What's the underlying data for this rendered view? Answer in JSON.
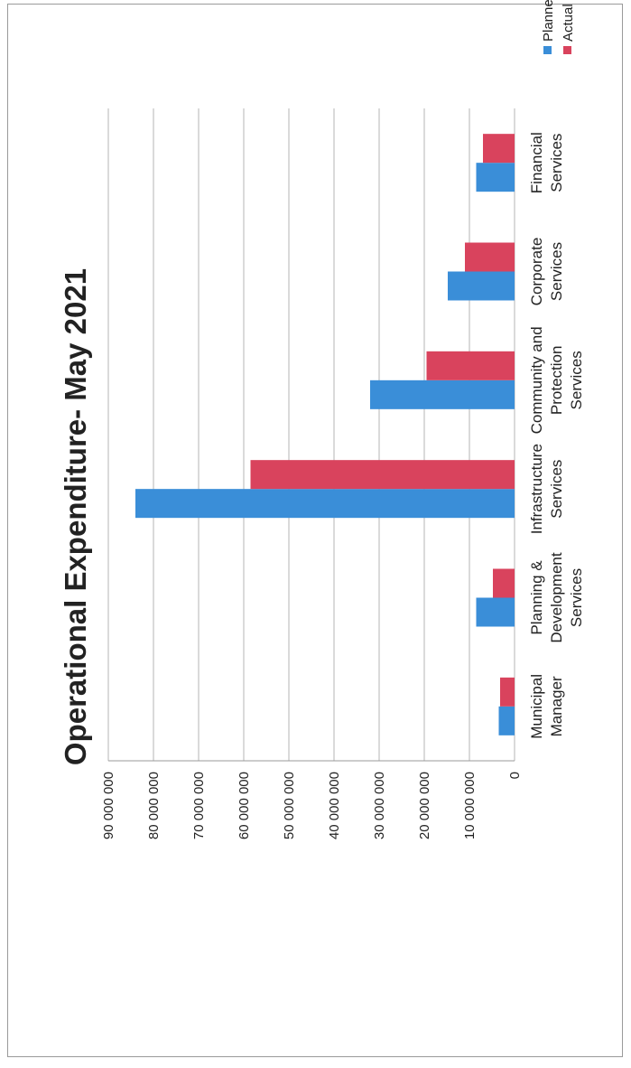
{
  "chart_data": {
    "type": "bar",
    "title": "Operational Expenditure-  May 2021",
    "categories": [
      "Municipal Manager",
      "Planning & Development Services",
      "Infrastructure Services",
      "Community and Protection Services",
      "Corporate Services",
      "Financial Services"
    ],
    "category_lines": [
      [
        "Municipal",
        "Manager"
      ],
      [
        "Planning &",
        "Development",
        "Services"
      ],
      [
        "Infrastructure",
        "Services"
      ],
      [
        "Community and",
        "Protection",
        "Services"
      ],
      [
        "Corporate",
        "Services"
      ],
      [
        "Financial",
        "Services"
      ]
    ],
    "series": [
      {
        "name": "Planned",
        "color": "#3a8ed8",
        "values": [
          3500000,
          8500000,
          84000000,
          32000000,
          14800000,
          8500000
        ]
      },
      {
        "name": "Actual",
        "color": "#d9435d",
        "values": [
          3200000,
          4800000,
          58500000,
          19500000,
          11000000,
          7000000
        ]
      }
    ],
    "ylim": [
      0,
      90000000
    ],
    "yticks": [
      0,
      10000000,
      20000000,
      30000000,
      40000000,
      50000000,
      60000000,
      70000000,
      80000000,
      90000000
    ],
    "ytick_labels": [
      "0",
      "10 000 000",
      "20 000 000",
      "30 000 000",
      "40 000 000",
      "50 000 000",
      "60 000 000",
      "70 000 000",
      "80 000 000",
      "90 000 000"
    ],
    "xlabel": "",
    "ylabel": "",
    "grid": true,
    "legend_position": "top-right"
  }
}
